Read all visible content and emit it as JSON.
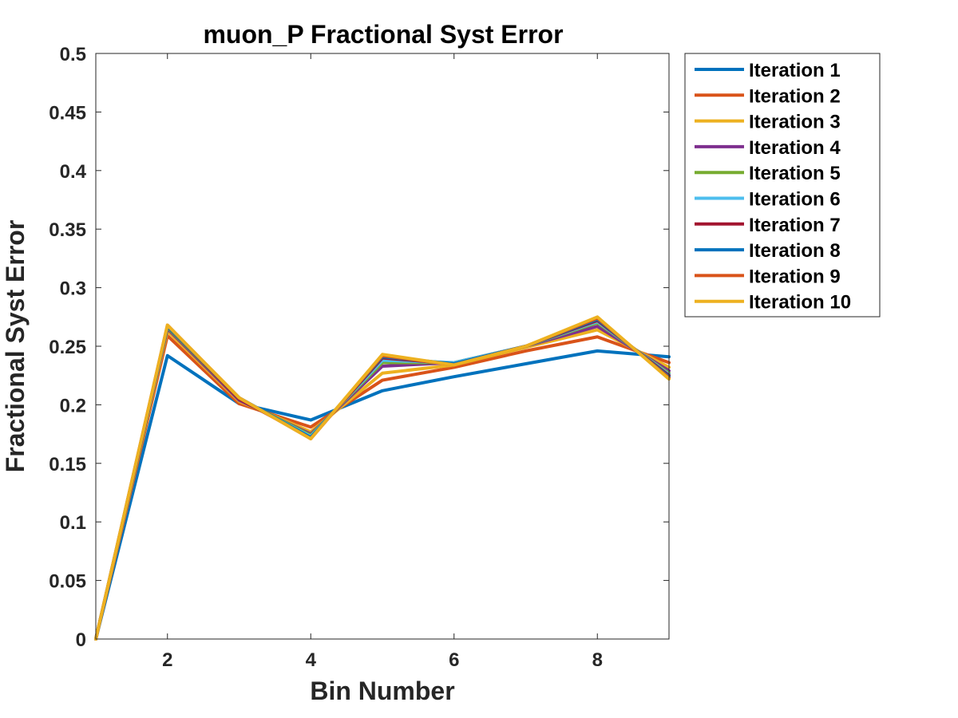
{
  "chart_data": {
    "type": "line",
    "title": "muon_P Fractional Syst Error",
    "xlabel": "Bin Number",
    "ylabel": "Fractional Syst Error",
    "xlim": [
      1,
      9
    ],
    "ylim": [
      0,
      0.5
    ],
    "xticks": [
      "2",
      "4",
      "6",
      "8"
    ],
    "yticks": [
      "0",
      "0.05",
      "0.1",
      "0.15",
      "0.2",
      "0.25",
      "0.3",
      "0.35",
      "0.4",
      "0.45",
      "0.5"
    ],
    "grid": false,
    "legend_position": "outside-top-right",
    "x": [
      1,
      2,
      3,
      4,
      5,
      6,
      7,
      8,
      9
    ],
    "series": [
      {
        "name": "Iteration 1",
        "color": "#0072BD",
        "values": [
          0,
          0.242,
          0.201,
          0.187,
          0.212,
          0.224,
          0.235,
          0.246,
          0.241
        ]
      },
      {
        "name": "Iteration 2",
        "color": "#D95319",
        "values": [
          0,
          0.259,
          0.201,
          0.181,
          0.221,
          0.232,
          0.246,
          0.258,
          0.236
        ]
      },
      {
        "name": "Iteration 3",
        "color": "#EDB120",
        "values": [
          0,
          0.263,
          0.203,
          0.177,
          0.227,
          0.234,
          0.249,
          0.264,
          0.232
        ]
      },
      {
        "name": "Iteration 4",
        "color": "#7E2F8E",
        "values": [
          0,
          0.265,
          0.204,
          0.175,
          0.233,
          0.236,
          0.25,
          0.267,
          0.229
        ]
      },
      {
        "name": "Iteration 5",
        "color": "#77AC30",
        "values": [
          0,
          0.266,
          0.205,
          0.174,
          0.236,
          0.236,
          0.25,
          0.27,
          0.227
        ]
      },
      {
        "name": "Iteration 6",
        "color": "#4DBEEE",
        "values": [
          0,
          0.267,
          0.205,
          0.173,
          0.238,
          0.236,
          0.25,
          0.271,
          0.226
        ]
      },
      {
        "name": "Iteration 7",
        "color": "#A2142F",
        "values": [
          0,
          0.267,
          0.205,
          0.172,
          0.24,
          0.235,
          0.25,
          0.272,
          0.225
        ]
      },
      {
        "name": "Iteration 8",
        "color": "#0072BD",
        "values": [
          0,
          0.267,
          0.206,
          0.172,
          0.241,
          0.235,
          0.25,
          0.273,
          0.224
        ]
      },
      {
        "name": "Iteration 9",
        "color": "#D95319",
        "values": [
          0,
          0.268,
          0.206,
          0.171,
          0.242,
          0.234,
          0.25,
          0.274,
          0.223
        ]
      },
      {
        "name": "Iteration 10",
        "color": "#EDB120",
        "values": [
          0,
          0.268,
          0.206,
          0.171,
          0.243,
          0.234,
          0.25,
          0.275,
          0.222
        ]
      }
    ]
  }
}
